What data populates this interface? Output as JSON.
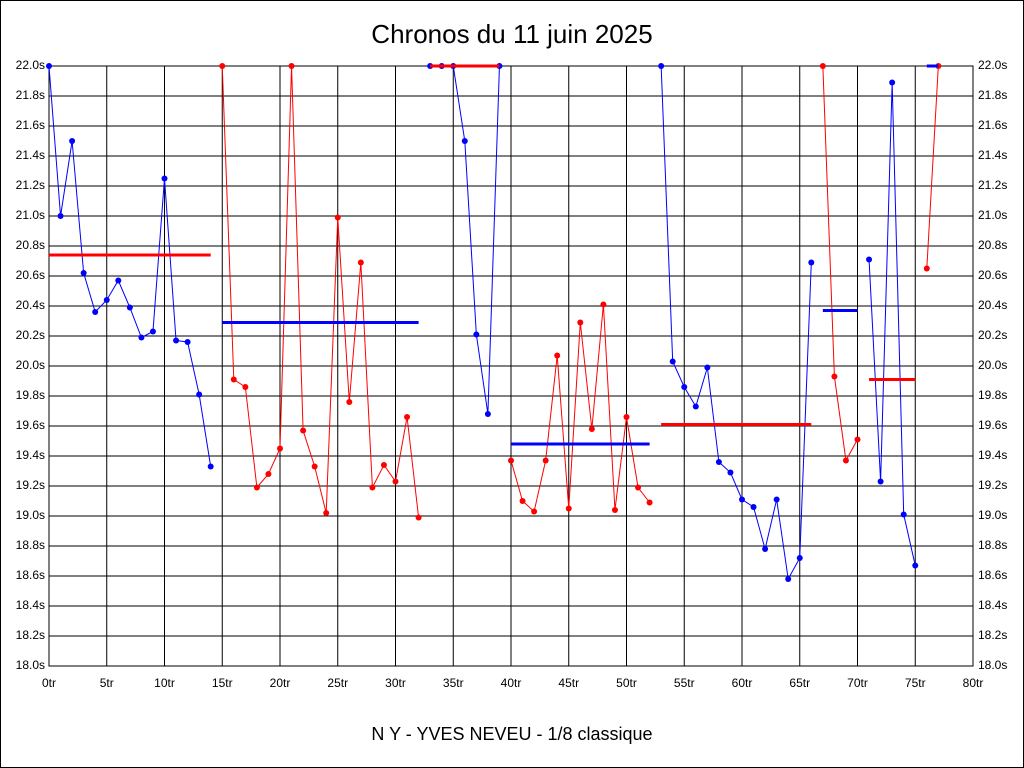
{
  "chart_data": {
    "type": "line",
    "title": "Chronos du 11 juin 2025",
    "subtitle": "N Y - YVES NEVEU - 1/8 classique",
    "xlim": [
      0,
      80
    ],
    "xticks": [
      {
        "value": 0,
        "label": "0tr"
      },
      {
        "value": 5,
        "label": "5tr"
      },
      {
        "value": 10,
        "label": "10tr"
      },
      {
        "value": 15,
        "label": "15tr"
      },
      {
        "value": 20,
        "label": "20tr"
      },
      {
        "value": 25,
        "label": "25tr"
      },
      {
        "value": 30,
        "label": "30tr"
      },
      {
        "value": 35,
        "label": "35tr"
      },
      {
        "value": 40,
        "label": "40tr"
      },
      {
        "value": 45,
        "label": "45tr"
      },
      {
        "value": 50,
        "label": "50tr"
      },
      {
        "value": 55,
        "label": "55tr"
      },
      {
        "value": 60,
        "label": "60tr"
      },
      {
        "value": 65,
        "label": "65tr"
      },
      {
        "value": 70,
        "label": "70tr"
      },
      {
        "value": 75,
        "label": "75tr"
      },
      {
        "value": 80,
        "label": "80tr"
      }
    ],
    "ylim": [
      18.0,
      22.0
    ],
    "yticks": [
      {
        "value": 18.0,
        "label": "18.0s"
      },
      {
        "value": 18.2,
        "label": "18.2s"
      },
      {
        "value": 18.4,
        "label": "18.4s"
      },
      {
        "value": 18.6,
        "label": "18.6s"
      },
      {
        "value": 18.8,
        "label": "18.8s"
      },
      {
        "value": 19.0,
        "label": "19.0s"
      },
      {
        "value": 19.2,
        "label": "19.2s"
      },
      {
        "value": 19.4,
        "label": "19.4s"
      },
      {
        "value": 19.6,
        "label": "19.6s"
      },
      {
        "value": 19.8,
        "label": "19.8s"
      },
      {
        "value": 20.0,
        "label": "20.0s"
      },
      {
        "value": 20.2,
        "label": "20.2s"
      },
      {
        "value": 20.4,
        "label": "20.4s"
      },
      {
        "value": 20.6,
        "label": "20.6s"
      },
      {
        "value": 20.8,
        "label": "20.8s"
      },
      {
        "value": 21.0,
        "label": "21.0s"
      },
      {
        "value": 21.2,
        "label": "21.2s"
      },
      {
        "value": 21.4,
        "label": "21.4s"
      },
      {
        "value": 21.6,
        "label": "21.6s"
      },
      {
        "value": 21.8,
        "label": "21.8s"
      },
      {
        "value": 22.0,
        "label": "22.0s"
      }
    ],
    "grid": true,
    "series": [
      {
        "color": "#0000ff",
        "mean_color": "#ff0000",
        "mean": 20.74,
        "x": [
          0,
          1,
          2,
          3,
          4,
          5,
          6,
          7,
          8,
          9,
          10,
          11,
          12,
          13,
          14
        ],
        "values": [
          22.0,
          21.0,
          21.5,
          20.62,
          20.36,
          20.44,
          20.57,
          20.39,
          20.19,
          20.23,
          21.25,
          20.17,
          20.16,
          19.81,
          19.33
        ]
      },
      {
        "color": "#ff0000",
        "mean_color": "#0000ff",
        "mean": 20.29,
        "x": [
          15,
          16,
          17,
          18,
          19,
          20,
          21,
          22,
          23,
          24,
          25,
          26,
          27,
          28,
          29,
          30,
          31,
          32
        ],
        "values": [
          22.0,
          19.91,
          19.86,
          19.19,
          19.28,
          19.45,
          22.0,
          19.57,
          19.33,
          19.02,
          20.99,
          19.76,
          20.69,
          19.19,
          19.34,
          19.23,
          19.66,
          18.99
        ]
      },
      {
        "color": "#0000ff",
        "mean_color": "#ff0000",
        "mean": 22.0,
        "x": [
          33,
          34,
          35,
          36,
          37,
          38,
          39
        ],
        "values": [
          22.0,
          22.0,
          22.0,
          21.5,
          20.21,
          19.68,
          22.0
        ]
      },
      {
        "color": "#ff0000",
        "mean_color": "#0000ff",
        "mean": 19.48,
        "x": [
          40,
          41,
          42,
          43,
          44,
          45,
          46,
          47,
          48,
          49,
          50,
          51,
          52
        ],
        "values": [
          19.37,
          19.1,
          19.03,
          19.37,
          20.07,
          19.05,
          20.29,
          19.58,
          20.41,
          19.04,
          19.66,
          19.19,
          19.09
        ]
      },
      {
        "color": "#0000ff",
        "mean_color": "#ff0000",
        "mean": 19.61,
        "x": [
          53,
          54,
          55,
          56,
          57,
          58,
          59,
          60,
          61,
          62,
          63,
          64,
          65,
          66
        ],
        "values": [
          22.0,
          20.03,
          19.86,
          19.73,
          19.99,
          19.36,
          19.29,
          19.11,
          19.06,
          18.78,
          19.11,
          18.58,
          18.72,
          20.69
        ]
      },
      {
        "color": "#ff0000",
        "mean_color": "#0000ff",
        "mean": 20.37,
        "x": [
          67,
          68,
          69,
          70
        ],
        "values": [
          22.0,
          19.93,
          19.37,
          19.51
        ]
      },
      {
        "color": "#0000ff",
        "mean_color": "#ff0000",
        "mean": 19.91,
        "x": [
          71,
          72,
          73,
          74,
          75
        ],
        "values": [
          20.71,
          19.23,
          21.89,
          19.01,
          18.67
        ]
      },
      {
        "color": "#ff0000",
        "mean_color": "#0000ff",
        "mean": 22.0,
        "x": [
          76,
          77
        ],
        "values": [
          20.65,
          22.0
        ]
      }
    ]
  }
}
